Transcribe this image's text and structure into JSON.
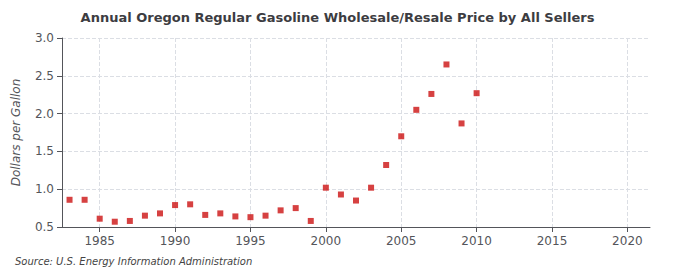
{
  "chart_data": {
    "type": "scatter",
    "title": "Annual Oregon Regular Gasoline Wholesale/Resale Price by All Sellers",
    "ylabel": "Dollars per Gallon",
    "annotation": "Source: U.S. Energy Information Administration",
    "x": [
      1983,
      1984,
      1985,
      1986,
      1987,
      1988,
      1989,
      1990,
      1991,
      1992,
      1993,
      1994,
      1995,
      1996,
      1997,
      1998,
      1999,
      2000,
      2001,
      2002,
      2003,
      2004,
      2005,
      2006,
      2007,
      2008,
      2009,
      2010
    ],
    "values": [
      0.86,
      0.86,
      0.61,
      0.57,
      0.58,
      0.65,
      0.68,
      0.79,
      0.8,
      0.66,
      0.68,
      0.64,
      0.63,
      0.65,
      0.72,
      0.75,
      0.58,
      1.02,
      0.93,
      0.85,
      1.02,
      1.32,
      1.7,
      2.05,
      2.26,
      2.65,
      1.87,
      2.27
    ],
    "color": "#cc1111",
    "marker": "square",
    "xlim": [
      1982.5,
      2021.5
    ],
    "xticks": [
      1985,
      1990,
      1995,
      2000,
      2005,
      2010,
      2015,
      2020
    ],
    "ylim": [
      0.5,
      3.0
    ],
    "yticks": [
      0.5,
      {
        "value": 1.0,
        "label": "1.0"
      },
      1.5,
      {
        "value": 2.0,
        "label": "2.0"
      },
      2.5,
      {
        "value": 3.0,
        "label": "3.0"
      }
    ],
    "grid": true
  }
}
